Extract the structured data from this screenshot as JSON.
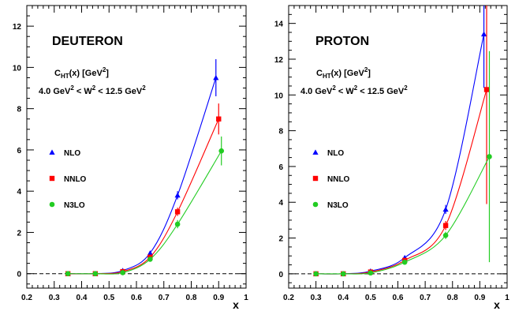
{
  "chart_data": [
    {
      "type": "scatter",
      "title": "DEUTERON",
      "subtitle_main": "C",
      "subtitle_sub": "HT",
      "subtitle_rest": "(x) [GeV",
      "subtitle_sup": "2",
      "subtitle_end": "]",
      "range_a": "4.0 GeV",
      "range_sup1": "2",
      "range_b": " < W",
      "range_sup2": "2",
      "range_c": " < 12.5 GeV",
      "range_sup3": "2",
      "xlabel": "x",
      "xlim": [
        0.2,
        1.0
      ],
      "ylim": [
        -0.7,
        13.0
      ],
      "xticks": [
        "0.2",
        "0.3",
        "0.4",
        "0.5",
        "0.6",
        "0.7",
        "0.8",
        "0.9",
        "1"
      ],
      "yticks": [
        "0",
        "2",
        "4",
        "6",
        "8",
        "10",
        "12"
      ],
      "series": [
        {
          "name": "NLO",
          "color": "#0000ff",
          "marker": "triangle",
          "x": [
            0.35,
            0.45,
            0.55,
            0.65,
            0.75,
            0.89
          ],
          "y": [
            0.0,
            0.0,
            0.15,
            1.0,
            3.8,
            9.5
          ],
          "err": [
            0.05,
            0.05,
            0.05,
            0.1,
            0.2,
            0.9
          ]
        },
        {
          "name": "NNLO",
          "color": "#ff0000",
          "marker": "square",
          "x": [
            0.35,
            0.45,
            0.55,
            0.65,
            0.75,
            0.9
          ],
          "y": [
            0.0,
            0.0,
            0.1,
            0.8,
            3.0,
            7.5
          ],
          "err": [
            0.05,
            0.05,
            0.05,
            0.1,
            0.2,
            0.75
          ]
        },
        {
          "name": "N3LO",
          "color": "#22cc22",
          "marker": "circle",
          "x": [
            0.35,
            0.45,
            0.55,
            0.65,
            0.75,
            0.91
          ],
          "y": [
            0.0,
            0.0,
            0.05,
            0.7,
            2.4,
            5.95
          ],
          "err": [
            0.05,
            0.05,
            0.05,
            0.1,
            0.2,
            0.7
          ]
        }
      ]
    },
    {
      "type": "scatter",
      "title": "PROTON",
      "subtitle_main": "C",
      "subtitle_sub": "HT",
      "subtitle_rest": "(x) [GeV",
      "subtitle_sup": "2",
      "subtitle_end": "]",
      "range_a": "4.0 GeV",
      "range_sup1": "2",
      "range_b": " < W",
      "range_sup2": "2",
      "range_c": " < 12.5 GeV",
      "range_sup3": "2",
      "xlabel": "x",
      "xlim": [
        0.2,
        1.0
      ],
      "ylim": [
        -0.8,
        15.0
      ],
      "xticks": [
        "0.2",
        "0.3",
        "0.4",
        "0.5",
        "0.6",
        "0.7",
        "0.8",
        "0.9",
        "1"
      ],
      "yticks": [
        "0",
        "2",
        "4",
        "6",
        "8",
        "10",
        "12",
        "14"
      ],
      "series": [
        {
          "name": "NLO",
          "color": "#0000ff",
          "marker": "triangle",
          "x": [
            0.3,
            0.4,
            0.5,
            0.625,
            0.775,
            0.915
          ],
          "y": [
            0.0,
            0.0,
            0.15,
            0.9,
            3.6,
            13.4
          ],
          "err": [
            0.05,
            0.05,
            0.05,
            0.1,
            0.25,
            3.0
          ]
        },
        {
          "name": "NNLO",
          "color": "#ff0000",
          "marker": "square",
          "x": [
            0.3,
            0.4,
            0.5,
            0.625,
            0.775,
            0.925
          ],
          "y": [
            0.0,
            0.0,
            0.1,
            0.75,
            2.7,
            10.3
          ],
          "err": [
            0.05,
            0.05,
            0.05,
            0.1,
            0.25,
            6.4
          ]
        },
        {
          "name": "N3LO",
          "color": "#22cc22",
          "marker": "circle",
          "x": [
            0.3,
            0.4,
            0.5,
            0.625,
            0.775,
            0.935
          ],
          "y": [
            0.0,
            0.0,
            0.05,
            0.65,
            2.15,
            6.55
          ],
          "err": [
            0.05,
            0.05,
            0.05,
            0.1,
            0.2,
            5.9
          ]
        }
      ]
    }
  ]
}
